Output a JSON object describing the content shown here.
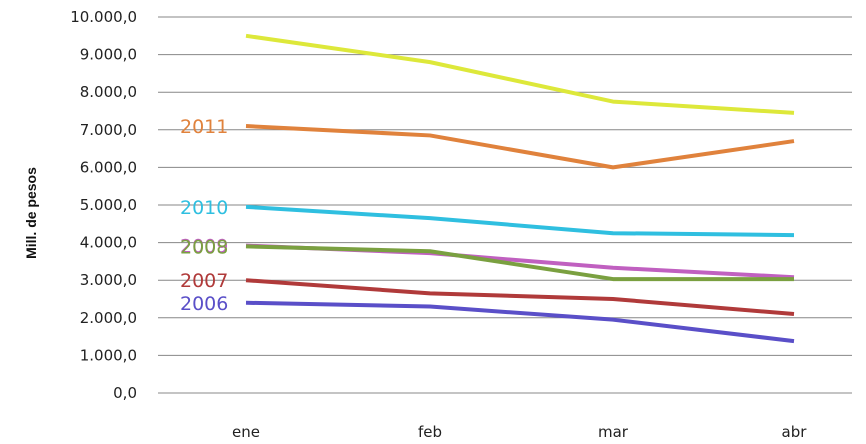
{
  "chart_data": {
    "type": "line",
    "categories": [
      "ene",
      "feb",
      "mar",
      "abr"
    ],
    "ylabel": "Mill. de pesos",
    "ylim": [
      0,
      10000
    ],
    "yticks": [
      "0,0",
      "1.000,0",
      "2.000,0",
      "3.000,0",
      "4.000,0",
      "5.000,0",
      "6.000,0",
      "7.000,0",
      "8.000,0",
      "9.000,0",
      "10.000,0"
    ],
    "grid": "horizontal",
    "legend": "inline labels at left",
    "series": [
      {
        "name": "",
        "color": "#dde83a",
        "values": [
          9500,
          8800,
          7750,
          7450
        ]
      },
      {
        "name": "2011",
        "color": "#e0823c",
        "values": [
          7100,
          6850,
          6000,
          6700
        ]
      },
      {
        "name": "2010",
        "color": "#2fbfe0",
        "values": [
          4950,
          4650,
          4250,
          4200
        ]
      },
      {
        "name": "2009",
        "color": "#c060c0",
        "values": [
          3920,
          3720,
          3330,
          3080
        ]
      },
      {
        "name": "2008",
        "color": "#7aa040",
        "values": [
          3900,
          3770,
          3030,
          3030
        ]
      },
      {
        "name": "2007",
        "color": "#b03a3a",
        "values": [
          3000,
          2650,
          2500,
          2100
        ]
      },
      {
        "name": "2006",
        "color": "#5a4fc8",
        "values": [
          2400,
          2300,
          1950,
          1380
        ]
      }
    ]
  }
}
